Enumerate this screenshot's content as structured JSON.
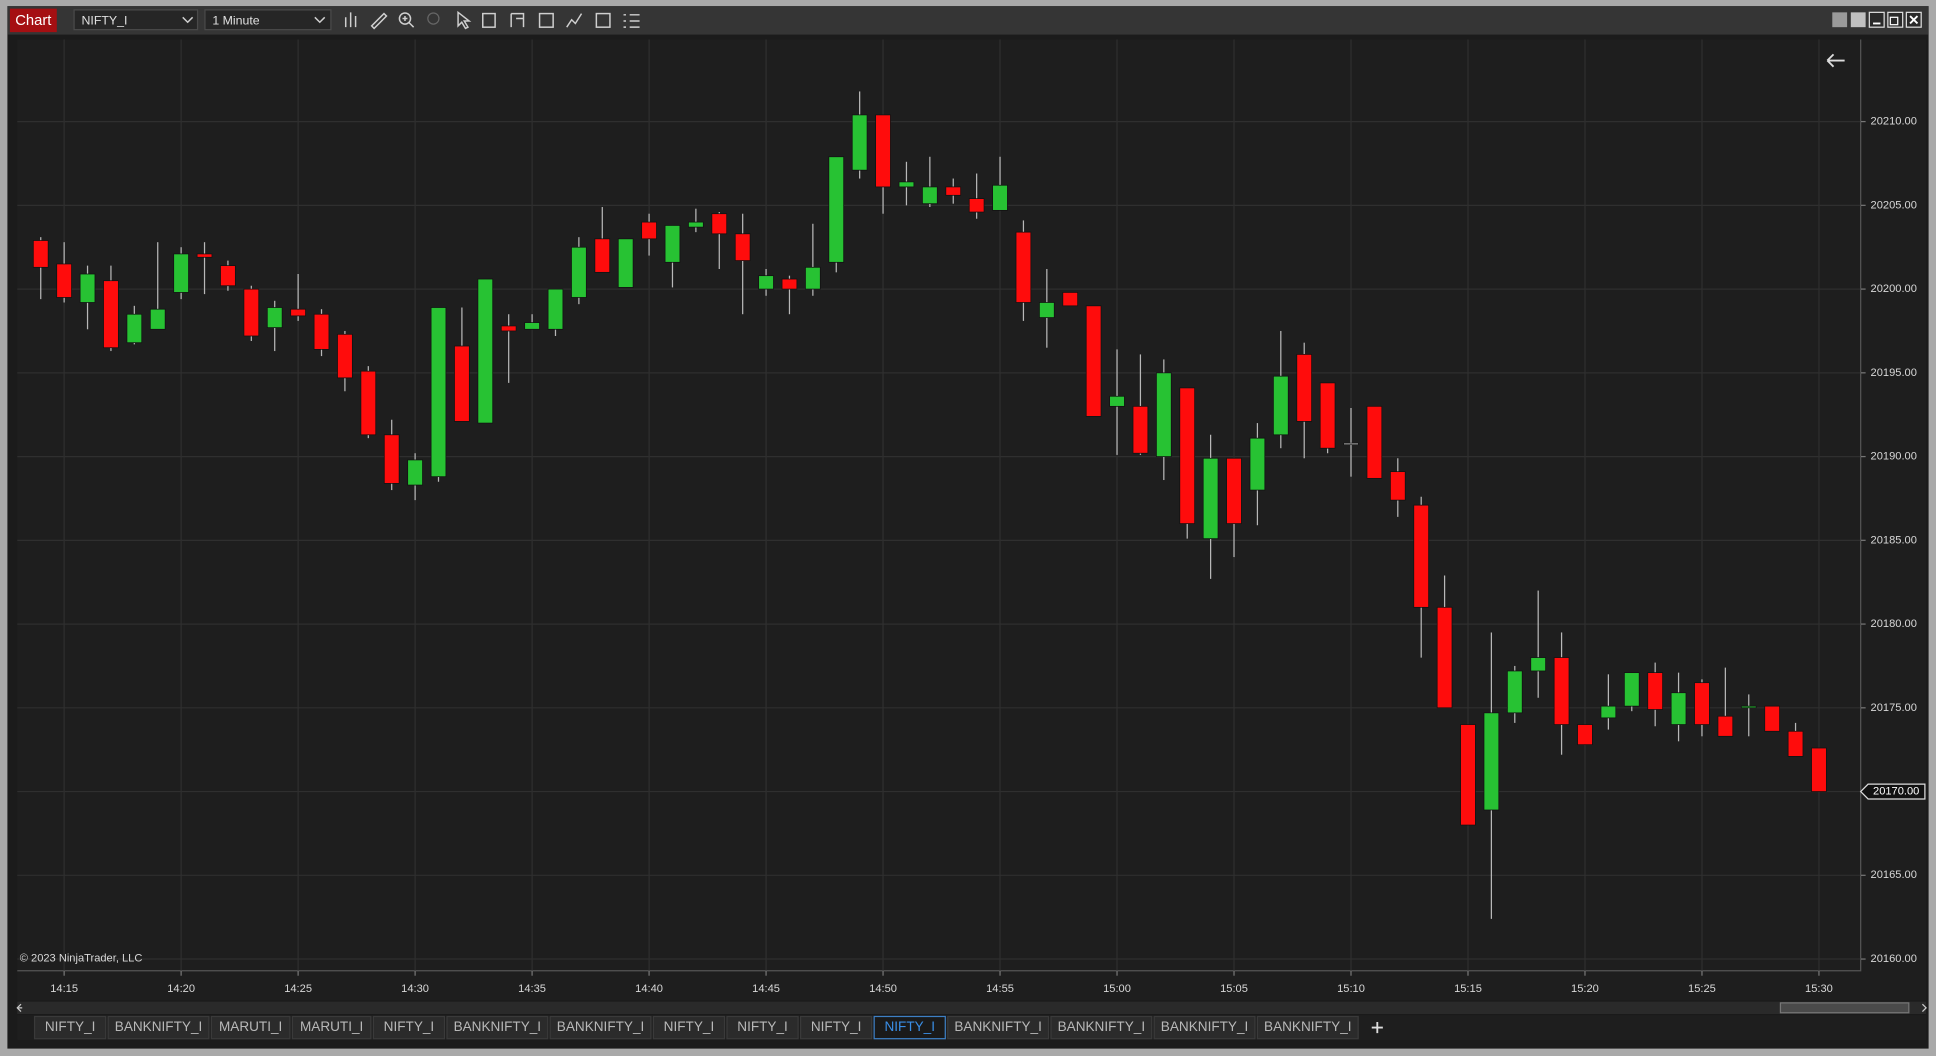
{
  "window": {
    "title": "Chart",
    "instrument": "NIFTY_I",
    "interval": "1 Minute",
    "copyright": "© 2023 NinjaTrader, LLC",
    "tabs": [
      "NIFTY_I",
      "BANKNIFTY_I",
      "MARUTI_I",
      "MARUTI_I",
      "NIFTY_I",
      "BANKNIFTY_I",
      "BANKNIFTY_I",
      "NIFTY_I",
      "NIFTY_I",
      "NIFTY_I",
      "NIFTY_I",
      "BANKNIFTY_I",
      "BANKNIFTY_I",
      "BANKNIFTY_I",
      "BANKNIFTY_I"
    ],
    "active_tab": 10
  },
  "chart_data": {
    "type": "candlestick",
    "categories": [
      null,
      "14:15",
      null,
      null,
      null,
      null,
      "14:20",
      null,
      null,
      null,
      null,
      "14:25",
      null,
      null,
      null,
      null,
      "14:30",
      null,
      null,
      null,
      null,
      "14:35",
      null,
      null,
      null,
      null,
      "14:40",
      null,
      null,
      null,
      null,
      "14:45",
      null,
      null,
      null,
      null,
      "14:50",
      null,
      null,
      null,
      null,
      "14:55",
      null,
      null,
      null,
      null,
      "15:00",
      null,
      null,
      null,
      null,
      "15:05",
      null,
      null,
      null,
      null,
      "15:10",
      null,
      null,
      null,
      null,
      "15:15",
      null,
      null,
      null,
      null,
      "15:20",
      null,
      null,
      null,
      null,
      "15:25",
      null,
      null,
      null,
      null,
      "15:30"
    ],
    "open": [
      20202.9,
      20201.5,
      20199.2,
      20200.5,
      20196.8,
      20197.6,
      20199.8,
      20202.1,
      20201.4,
      20200.0,
      20197.7,
      20198.8,
      20198.5,
      20197.3,
      20195.1,
      20191.3,
      20188.3,
      20188.8,
      20196.6,
      20192.0,
      20197.8,
      20197.6,
      20197.6,
      20199.5,
      20203.0,
      20200.1,
      20204.0,
      20201.6,
      20203.7,
      20204.5,
      20203.3,
      20200.0,
      20200.6,
      20200.0,
      20201.6,
      20207.1,
      20210.4,
      20206.1,
      20205.1,
      20206.1,
      20205.4,
      20204.7,
      20203.4,
      20198.3,
      20199.8,
      20199.0,
      20193.0,
      20193.0,
      20190.0,
      20194.1,
      20185.1,
      20189.9,
      20188.0,
      20191.3,
      20196.1,
      20194.4,
      20190.8,
      20193.0,
      20189.1,
      20187.1,
      20181.0,
      20174.0,
      20168.9,
      20174.7,
      20177.2,
      20178.0,
      20174.0,
      20174.4,
      20175.1,
      20177.1,
      20174.0,
      20176.5,
      20174.5,
      20175.0,
      20175.1,
      20173.6,
      20172.6
    ],
    "high": [
      20203.1,
      20202.8,
      20201.4,
      20201.4,
      20199.0,
      20202.8,
      20202.5,
      20202.8,
      20201.7,
      20200.2,
      20199.3,
      20200.9,
      20198.8,
      20197.5,
      20195.4,
      20192.2,
      20190.2,
      20198.9,
      20198.9,
      20200.6,
      20198.5,
      20198.5,
      20200.0,
      20203.1,
      20204.9,
      20203.0,
      20204.5,
      20203.8,
      20204.8,
      20204.6,
      20204.5,
      20201.2,
      20200.8,
      20203.9,
      20207.9,
      20211.8,
      20210.4,
      20207.6,
      20207.9,
      20206.6,
      20206.9,
      20207.9,
      20204.1,
      20201.2,
      20199.8,
      20199.0,
      20196.4,
      20196.1,
      20195.8,
      20194.1,
      20191.3,
      20189.9,
      20192.0,
      20197.5,
      20196.8,
      20194.4,
      20192.9,
      20193.0,
      20189.9,
      20187.6,
      20182.9,
      20174.0,
      20179.5,
      20177.5,
      20182.0,
      20179.5,
      20174.0,
      20177.0,
      20177.1,
      20177.7,
      20177.1,
      20176.7,
      20177.4,
      20175.8,
      20175.1,
      20174.1,
      20172.6
    ],
    "low": [
      20199.4,
      20199.2,
      20197.6,
      20196.3,
      20196.7,
      20197.6,
      20199.4,
      20199.7,
      20199.9,
      20196.9,
      20196.3,
      20198.1,
      20196.0,
      20193.9,
      20191.1,
      20188.0,
      20187.4,
      20188.5,
      20192.1,
      20192.0,
      20194.4,
      20197.6,
      20197.2,
      20199.1,
      20201.0,
      20200.1,
      20202.0,
      20200.1,
      20203.4,
      20201.2,
      20198.5,
      20199.6,
      20198.5,
      20199.6,
      20201.0,
      20206.6,
      20204.5,
      20205.0,
      20204.9,
      20205.1,
      20204.2,
      20204.7,
      20198.1,
      20196.5,
      20199.0,
      20192.4,
      20190.1,
      20190.1,
      20188.6,
      20185.1,
      20182.7,
      20184.0,
      20185.9,
      20190.5,
      20189.9,
      20190.2,
      20188.8,
      20188.7,
      20186.4,
      20178.0,
      20175.0,
      20168.0,
      20162.4,
      20174.1,
      20175.6,
      20172.2,
      20172.8,
      20173.7,
      20174.8,
      20173.9,
      20173.0,
      20173.3,
      20173.3,
      20173.3,
      20173.6,
      20172.1,
      20170.0
    ],
    "close": [
      20201.3,
      20199.5,
      20200.9,
      20196.5,
      20198.5,
      20198.8,
      20202.1,
      20201.9,
      20200.2,
      20197.2,
      20198.9,
      20198.4,
      20196.4,
      20194.7,
      20191.3,
      20188.4,
      20189.8,
      20198.9,
      20192.1,
      20200.6,
      20197.5,
      20198.0,
      20200.0,
      20202.5,
      20201.0,
      20203.0,
      20203.0,
      20203.8,
      20204.0,
      20203.3,
      20201.7,
      20200.8,
      20200.0,
      20201.3,
      20207.9,
      20210.4,
      20206.1,
      20206.4,
      20206.1,
      20205.6,
      20204.6,
      20206.2,
      20199.2,
      20199.2,
      20199.0,
      20192.4,
      20193.6,
      20190.2,
      20195.0,
      20186.0,
      20189.9,
      20186.0,
      20191.1,
      20194.8,
      20192.1,
      20190.5,
      20190.8,
      20188.7,
      20187.4,
      20181.0,
      20175.0,
      20168.0,
      20174.7,
      20177.2,
      20178.0,
      20174.0,
      20172.8,
      20175.1,
      20177.1,
      20174.9,
      20175.9,
      20174.0,
      20173.3,
      20175.1,
      20173.6,
      20172.1,
      20170.0
    ],
    "up_color": "#27c233",
    "down_color": "#ff0c0c",
    "doji_color": "#e6e6e6",
    "wick_color": "#b8b8b8",
    "ylim": [
      20159.3,
      20214.9
    ],
    "yticks": [
      {
        "value": 20160,
        "label": "20160.00"
      },
      {
        "value": 20165,
        "label": "20165.00"
      },
      {
        "value": 20170,
        "label": "20170.00"
      },
      {
        "value": 20175,
        "label": "20175.00"
      },
      {
        "value": 20180,
        "label": "20180.00"
      },
      {
        "value": 20185,
        "label": "20185.00"
      },
      {
        "value": 20190,
        "label": "20190.00"
      },
      {
        "value": 20195,
        "label": "20195.00"
      },
      {
        "value": 20200,
        "label": "20200.00"
      },
      {
        "value": 20205,
        "label": "20205.00"
      },
      {
        "value": 20210,
        "label": "20210.00"
      }
    ],
    "grid": true,
    "last_price": {
      "value": 20170,
      "label": "20170.00"
    }
  }
}
